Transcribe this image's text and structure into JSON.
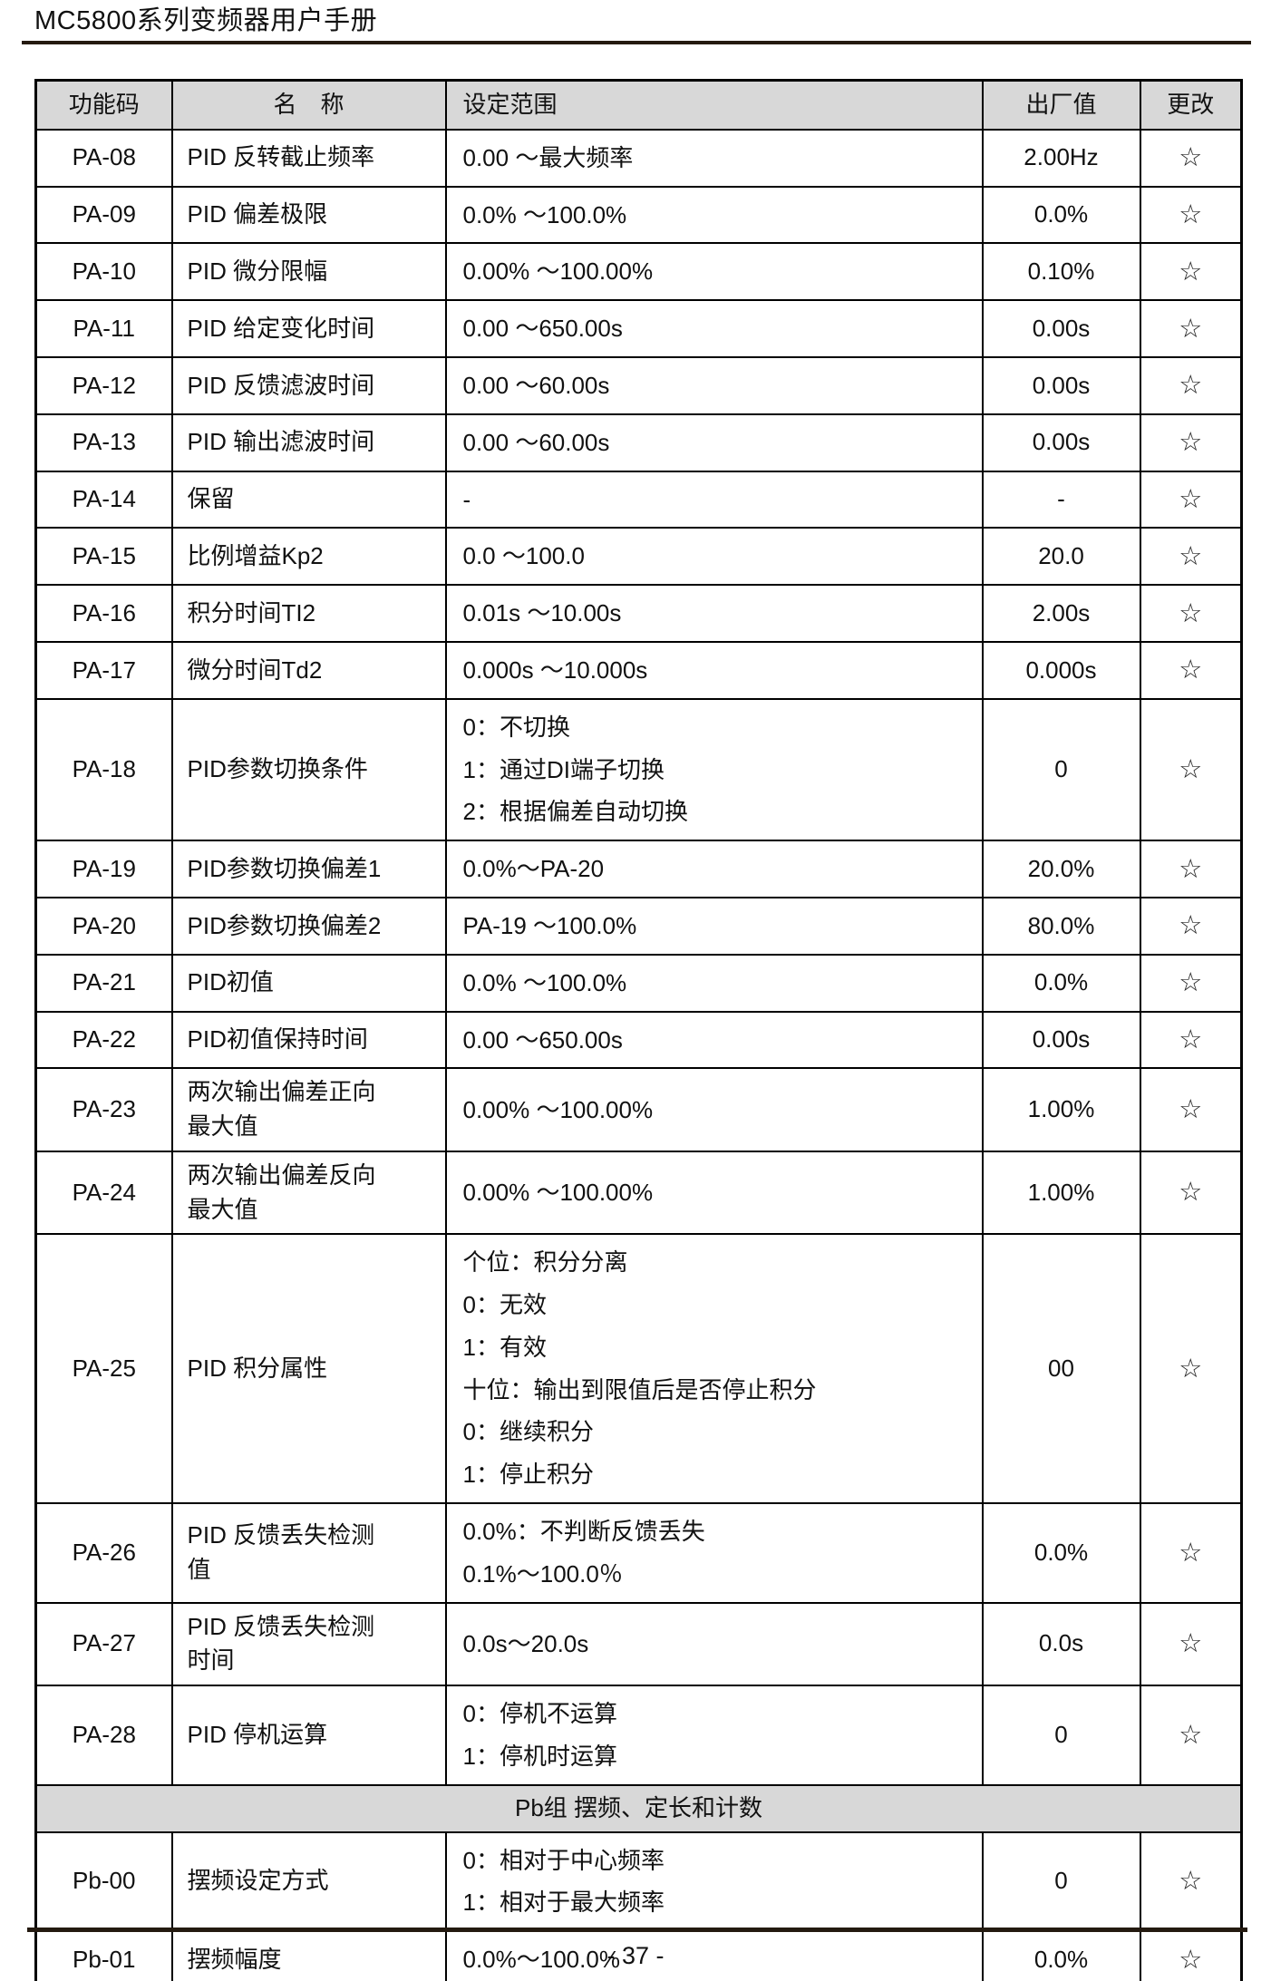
{
  "page": {
    "title": "MC5800系列变频器用户手册",
    "page_number": "- 37 -"
  },
  "table": {
    "headers": [
      "功能码",
      "名　称",
      "设定范围",
      "出厂值",
      "更改"
    ],
    "change_symbol": "☆",
    "rows": [
      {
        "code": "PA-08",
        "name": "PID 反转截止频率",
        "range": "0.00 ～最大频率",
        "value": "2.00Hz",
        "change": "☆"
      },
      {
        "code": "PA-09",
        "name": "PID 偏差极限",
        "range": "0.0% ～100.0%",
        "value": "0.0%",
        "change": "☆"
      },
      {
        "code": "PA-10",
        "name": "PID 微分限幅",
        "range": "0.00% ～100.00%",
        "value": "0.10%",
        "change": "☆"
      },
      {
        "code": "PA-11",
        "name": "PID 给定变化时间",
        "range": "0.00 ～650.00s",
        "value": "0.00s",
        "change": "☆"
      },
      {
        "code": "PA-12",
        "name": "PID 反馈滤波时间",
        "range": "0.00 ～60.00s",
        "value": "0.00s",
        "change": "☆"
      },
      {
        "code": "PA-13",
        "name": "PID 输出滤波时间",
        "range": "0.00 ～60.00s",
        "value": "0.00s",
        "change": "☆"
      },
      {
        "code": "PA-14",
        "name": "保留",
        "range": "-",
        "value": "-",
        "change": "☆"
      },
      {
        "code": "PA-15",
        "name": "比例增益Kp2",
        "range": "0.0 ～100.0",
        "value": "20.0",
        "change": "☆"
      },
      {
        "code": "PA-16",
        "name": "积分时间TI2",
        "range": "0.01s ～10.00s",
        "value": "2.00s",
        "change": "☆"
      },
      {
        "code": "PA-17",
        "name": "微分时间Td2",
        "range": "0.000s ～10.000s",
        "value": "0.000s",
        "change": "☆"
      },
      {
        "code": "PA-18",
        "name": "PID参数切换条件",
        "range": "0：不切换\n1：通过DI端子切换\n2：根据偏差自动切换",
        "value": "0",
        "change": "☆"
      },
      {
        "code": "PA-19",
        "name": "PID参数切换偏差1",
        "range": "0.0%～PA-20",
        "value": "20.0%",
        "change": "☆"
      },
      {
        "code": "PA-20",
        "name": "PID参数切换偏差2",
        "range": "PA-19 ～100.0%",
        "value": "80.0%",
        "change": "☆"
      },
      {
        "code": "PA-21",
        "name": "PID初值",
        "range": "0.0% ～100.0%",
        "value": "0.0%",
        "change": "☆"
      },
      {
        "code": "PA-22",
        "name": "PID初值保持时间",
        "range": "0.00 ～650.00s",
        "value": "0.00s",
        "change": "☆"
      },
      {
        "code": "PA-23",
        "name": "两次输出偏差正向\n最大值",
        "range": "0.00% ～100.00%",
        "value": "1.00%",
        "change": "☆"
      },
      {
        "code": "PA-24",
        "name": "两次输出偏差反向\n最大值",
        "range": "0.00% ～100.00%",
        "value": "1.00%",
        "change": "☆"
      },
      {
        "code": "PA-25",
        "name": "PID 积分属性",
        "range": "个位：积分分离\n0：无效\n1：有效\n十位：输出到限值后是否停止积分\n0：继续积分\n1：停止积分",
        "value": "00",
        "change": "☆"
      },
      {
        "code": "PA-26",
        "name": "PID 反馈丢失检测\n值",
        "range": "0.0%：不判断反馈丢失\n0.1%～100.0％",
        "value": "0.0%",
        "change": "☆"
      },
      {
        "code": "PA-27",
        "name": "PID 反馈丢失检测\n时间",
        "range": "0.0s～20.0s",
        "value": "0.0s",
        "change": "☆"
      },
      {
        "code": "PA-28",
        "name": "PID 停机运算",
        "range": "0：停机不运算\n1：停机时运算",
        "value": "0",
        "change": "☆"
      },
      {
        "section": "Pb组 摆频、定长和计数"
      },
      {
        "code": "Pb-00",
        "name": "摆频设定方式",
        "range": "0：相对于中心频率\n1：相对于最大频率",
        "value": "0",
        "change": "☆"
      },
      {
        "code": "Pb-01",
        "name": "摆频幅度",
        "range": "0.0%～100.0%",
        "value": "0.0%",
        "change": "☆"
      }
    ]
  }
}
